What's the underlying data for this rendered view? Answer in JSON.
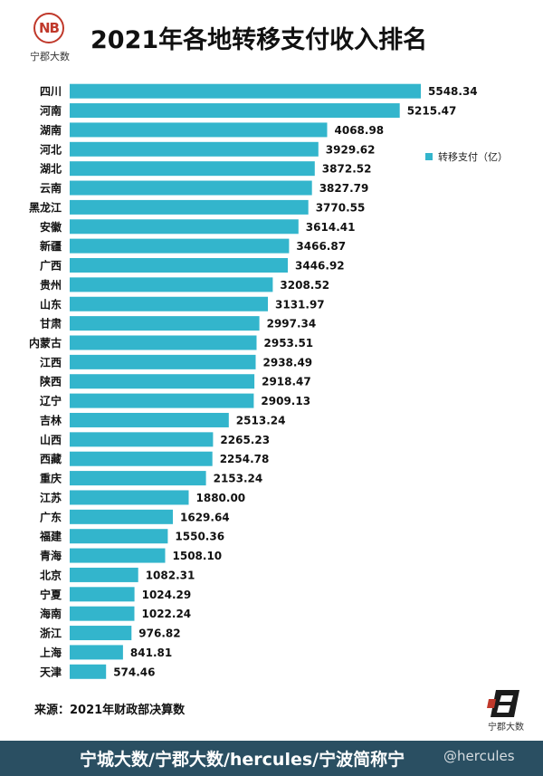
{
  "title": "2021年各地转移支付收入排名",
  "logo_top": {
    "mark": "NB",
    "text": "宁郡大数"
  },
  "logo_bottom": {
    "text": "宁郡大数"
  },
  "source": "来源：2021年财政部决算数",
  "footer": {
    "banner": "宁城大数/宁郡大数/hercules/宁波简称宁",
    "watermark": "@hercules"
  },
  "colors": {
    "bar": "#33b5cc",
    "footer_bg": "#2a4f62",
    "logo_red": "#c0392b"
  },
  "chart_data": {
    "type": "bar",
    "orientation": "horizontal",
    "legend": {
      "label": "转移支付（亿）",
      "placement": "right"
    },
    "grid": false,
    "categories": [
      "四川",
      "河南",
      "湖南",
      "河北",
      "湖北",
      "云南",
      "黑龙江",
      "安徽",
      "新疆",
      "广西",
      "贵州",
      "山东",
      "甘肃",
      "内蒙古",
      "江西",
      "陕西",
      "辽宁",
      "吉林",
      "山西",
      "西藏",
      "重庆",
      "江苏",
      "广东",
      "福建",
      "青海",
      "北京",
      "宁夏",
      "海南",
      "浙江",
      "上海",
      "天津"
    ],
    "series": [
      {
        "name": "转移支付（亿）",
        "values": [
          5548.34,
          5215.47,
          4068.98,
          3929.62,
          3872.52,
          3827.79,
          3770.55,
          3614.41,
          3466.87,
          3446.92,
          3208.52,
          3131.97,
          2997.34,
          2953.51,
          2938.49,
          2918.47,
          2909.13,
          2513.24,
          2265.23,
          2254.78,
          2153.24,
          1880.0,
          1629.64,
          1550.36,
          1508.1,
          1082.31,
          1024.29,
          1022.24,
          976.82,
          841.81,
          574.46
        ],
        "labels": [
          "5548.34",
          "5215.47",
          "4068.98",
          "3929.62",
          "3872.52",
          "3827.79",
          "3770.55",
          "3614.41",
          "3466.87",
          "3446.92",
          "3208.52",
          "3131.97",
          "2997.34",
          "2953.51",
          "2938.49",
          "2918.47",
          "2909.13",
          "2513.24",
          "2265.23",
          "2254.78",
          "2153.24",
          "1880.00",
          "1629.64",
          "1550.36",
          "1508.10",
          "1082.31",
          "1024.29",
          "1022.24",
          "976.82",
          "841.81",
          "574.46"
        ]
      }
    ],
    "xlim": [
      0,
      5548.34
    ]
  }
}
